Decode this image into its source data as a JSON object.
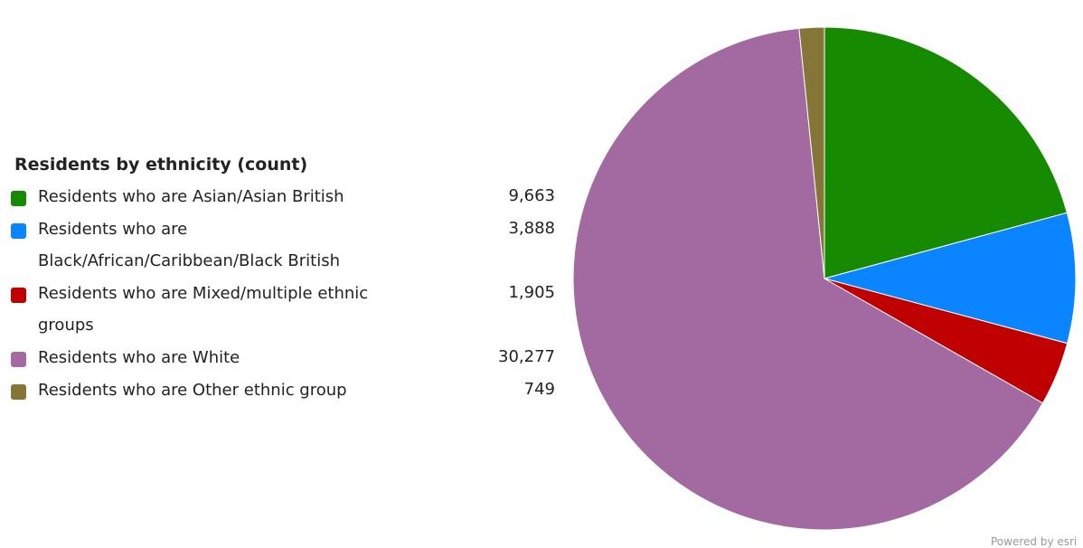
{
  "chart_data": {
    "type": "pie",
    "title": "Residents by ethnicity (count)",
    "categories": [
      "Residents who are Asian/Asian British",
      "Residents who are Black/African/Caribbean/Black British",
      "Residents who are Mixed/multiple ethnic groups",
      "Residents who are White",
      "Residents who are Other ethnic group"
    ],
    "values": [
      9663,
      3888,
      1905,
      30277,
      749
    ],
    "value_labels": [
      "9,663",
      "3,888",
      "1,905",
      "30,277",
      "749"
    ],
    "colors": [
      "#168a00",
      "#0a84ff",
      "#c00000",
      "#a26aa0",
      "#857537"
    ],
    "legend_placement": "left"
  },
  "footer": {
    "powered_by": "Powered by esri"
  }
}
